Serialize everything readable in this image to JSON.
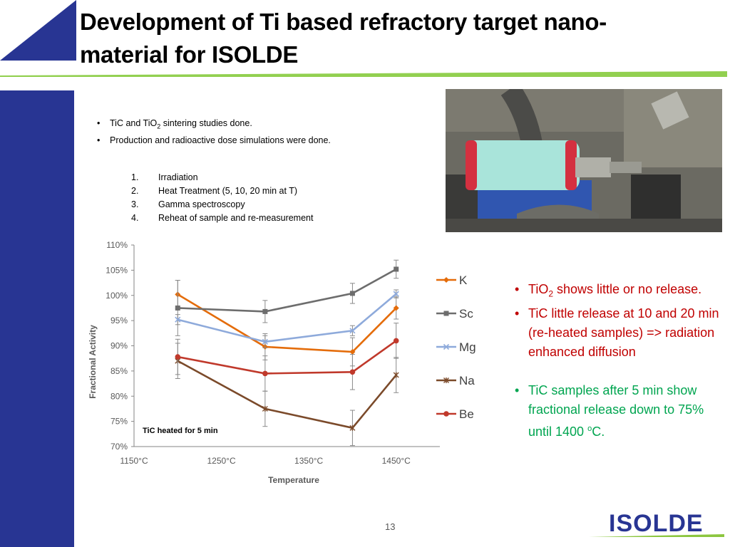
{
  "slide": {
    "title_line1": "Development of Ti based refractory target nano-",
    "title_line2": "material for ISOLDE",
    "page_number": "13",
    "logo_text": "ISOLDE"
  },
  "bullets": {
    "b1_pre": "TiC and TiO",
    "b1_sub": "2",
    "b1_post": " sintering studies done.",
    "b2": "Production and radioactive dose simulations were done."
  },
  "steps": [
    {
      "num": "1.",
      "label": "Irradiation"
    },
    {
      "num": "2.",
      "label": "Heat Treatment (5, 10, 20 min at T)"
    },
    {
      "num": "3.",
      "label": "Gamma spectroscopy"
    },
    {
      "num": "4.",
      "label": "Reheat of sample and re-measurement"
    }
  ],
  "notes": {
    "n1_pre": "TiO",
    "n1_sub": "2",
    "n1_post": " shows little or no release.",
    "n2": "TiC little release at 10 and 20 min (re-heated samples) => radiation enhanced diffusion",
    "n3_pre": "TiC samples after 5 min show fractional release down to 75% until 1400 ",
    "n3_sup": "o",
    "n3_post": "C."
  },
  "colors": {
    "title_rule": "#92d050",
    "sidebar": "#283593",
    "note_red": "#c00000",
    "note_green": "#00a550",
    "logo_blue": "#283593",
    "logo_green": "#8cc63f"
  },
  "chart_data": {
    "type": "line",
    "xlabel": "Temperature",
    "ylabel": "Fractional Activity",
    "annotation": "TiC heated for 5 min",
    "xlim": [
      1150,
      1500
    ],
    "ylim": [
      70,
      110
    ],
    "x_ticks": [
      "1150°C",
      "1250°C",
      "1350°C",
      "1450°C"
    ],
    "y_ticks": [
      "70%",
      "75%",
      "80%",
      "85%",
      "90%",
      "95%",
      "100%",
      "105%",
      "110%"
    ],
    "legend_position": "right",
    "x": [
      1200,
      1300,
      1400,
      1450
    ],
    "series": [
      {
        "name": "K",
        "color": "#e46c0a",
        "marker": "diamond",
        "values": [
          100.2,
          89.8,
          88.8,
          97.5
        ],
        "errors": [
          2.8,
          2.6,
          2.8,
          2.2
        ]
      },
      {
        "name": "Sc",
        "color": "#6d6d6d",
        "marker": "square",
        "values": [
          97.5,
          96.8,
          100.4,
          105.2
        ],
        "errors": [
          5.5,
          2.2,
          2.0,
          1.8
        ]
      },
      {
        "name": "Mg",
        "color": "#8eaadb",
        "marker": "x",
        "values": [
          95.2,
          90.8,
          93.0,
          100.3
        ],
        "errors": [
          1.0,
          1.2,
          1.0,
          0.8
        ]
      },
      {
        "name": "Na",
        "color": "#7b4a2a",
        "marker": "star",
        "values": [
          87.0,
          77.5,
          73.7,
          84.2
        ],
        "errors": [
          3.5,
          3.5,
          3.5,
          3.5
        ]
      },
      {
        "name": "Be",
        "color": "#c0392b",
        "marker": "circle",
        "values": [
          87.8,
          84.5,
          84.8,
          91.0
        ],
        "errors": [
          3.5,
          3.5,
          3.5,
          3.5
        ]
      }
    ]
  }
}
